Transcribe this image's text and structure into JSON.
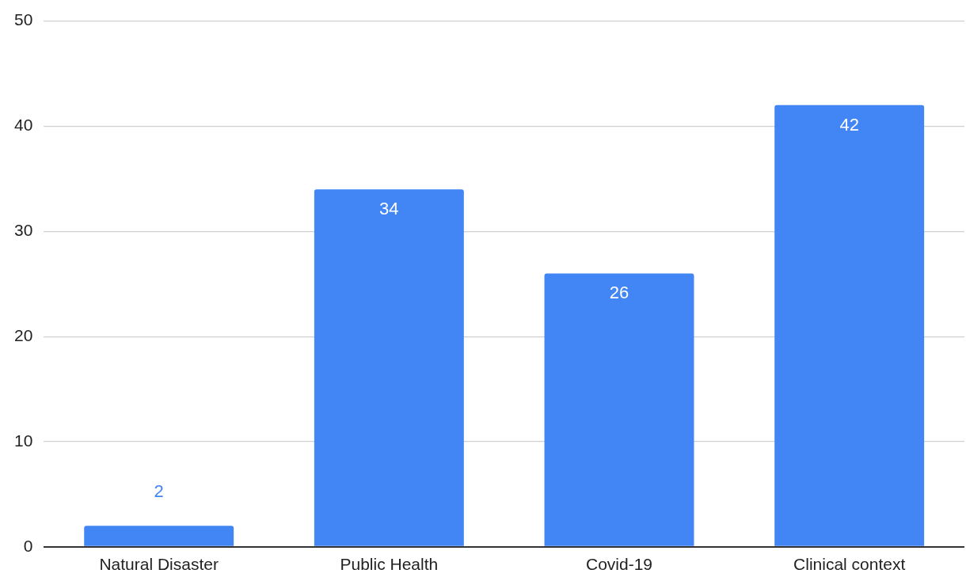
{
  "chart_data": {
    "type": "bar",
    "categories": [
      "Natural Disaster",
      "Public Health",
      "Covid-19",
      "Clinical context"
    ],
    "values": [
      2,
      34,
      26,
      42
    ],
    "color": "#4285f4",
    "ylim": [
      0,
      50
    ],
    "yticks": [
      0,
      10,
      20,
      30,
      40,
      50
    ],
    "grid": "y",
    "data_labels": true
  }
}
